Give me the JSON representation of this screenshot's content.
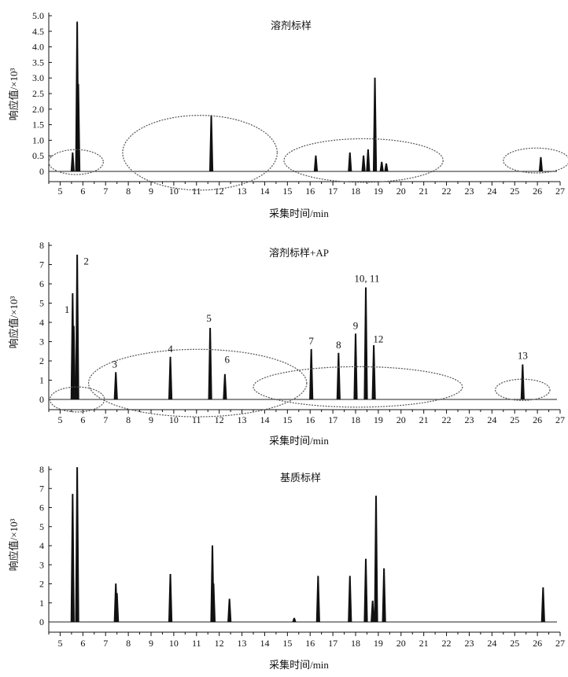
{
  "chart_data": [
    {
      "type": "line",
      "title": "溶剂标样",
      "xlabel": "采集时间/min",
      "ylabel": "响应值/×10³",
      "xlim": [
        4.5,
        27
      ],
      "ylim": [
        0,
        5.0
      ],
      "x_ticks": [
        "5",
        "6",
        "7",
        "8",
        "9",
        "10",
        "11",
        "12",
        "13",
        "14",
        "15",
        "16",
        "17",
        "18",
        "19",
        "20",
        "21",
        "22",
        "23",
        "24",
        "25",
        "26",
        "27"
      ],
      "y_ticks": [
        "0",
        "0.5",
        "1.0",
        "1.5",
        "2.0",
        "2.5",
        "3.0",
        "3.5",
        "4.0",
        "4.5",
        "5.0"
      ],
      "series": [
        {
          "peaks": [
            {
              "x": 5.55,
              "y": 0.6
            },
            {
              "x": 5.75,
              "y": 4.8
            },
            {
              "x": 5.8,
              "y": 2.8
            },
            {
              "x": 11.65,
              "y": 1.8
            },
            {
              "x": 16.25,
              "y": 0.5
            },
            {
              "x": 17.75,
              "y": 0.6
            },
            {
              "x": 18.35,
              "y": 0.5
            },
            {
              "x": 18.55,
              "y": 0.7
            },
            {
              "x": 18.85,
              "y": 3.0
            },
            {
              "x": 19.15,
              "y": 0.3
            },
            {
              "x": 19.35,
              "y": 0.25
            },
            {
              "x": 26.15,
              "y": 0.45
            }
          ]
        }
      ],
      "ellipses": [
        {
          "cx": 5.7,
          "cy": 0.3,
          "rx": 1.2,
          "ry": 0.4
        },
        {
          "cx": 11.15,
          "cy": 0.6,
          "rx": 3.4,
          "ry": 1.2
        },
        {
          "cx": 18.35,
          "cy": 0.35,
          "rx": 3.5,
          "ry": 0.7
        },
        {
          "cx": 25.95,
          "cy": 0.35,
          "rx": 1.45,
          "ry": 0.4
        }
      ]
    },
    {
      "type": "line",
      "title": "溶剂标样+AP",
      "xlabel": "采集时间/min",
      "ylabel": "响应值/×10³",
      "xlim": [
        4.5,
        27
      ],
      "ylim": [
        0,
        8
      ],
      "x_ticks": [
        "5",
        "6",
        "7",
        "8",
        "9",
        "10",
        "11",
        "12",
        "13",
        "14",
        "15",
        "16",
        "17",
        "18",
        "19",
        "20",
        "21",
        "22",
        "23",
        "24",
        "25",
        "26",
        "27"
      ],
      "y_ticks": [
        "0",
        "1",
        "2",
        "3",
        "4",
        "5",
        "6",
        "7",
        "8"
      ],
      "series": [
        {
          "peaks": [
            {
              "x": 5.55,
              "y": 5.5
            },
            {
              "x": 5.6,
              "y": 3.8
            },
            {
              "x": 5.75,
              "y": 7.5
            },
            {
              "x": 7.45,
              "y": 1.4
            },
            {
              "x": 9.85,
              "y": 2.2
            },
            {
              "x": 11.6,
              "y": 3.7
            },
            {
              "x": 12.25,
              "y": 1.3
            },
            {
              "x": 16.05,
              "y": 2.6
            },
            {
              "x": 17.25,
              "y": 2.4
            },
            {
              "x": 18.0,
              "y": 3.4
            },
            {
              "x": 18.45,
              "y": 5.8
            },
            {
              "x": 18.8,
              "y": 2.8
            },
            {
              "x": 25.35,
              "y": 1.8
            }
          ]
        }
      ],
      "labels": [
        {
          "text": "1",
          "x": 5.3,
          "y": 4.5
        },
        {
          "text": "2",
          "x": 6.15,
          "y": 7.0
        },
        {
          "text": "3",
          "x": 7.4,
          "y": 1.65
        },
        {
          "text": "4",
          "x": 9.85,
          "y": 2.45
        },
        {
          "text": "5",
          "x": 11.55,
          "y": 4.05
        },
        {
          "text": "6",
          "x": 12.35,
          "y": 1.9
        },
        {
          "text": "7",
          "x": 16.05,
          "y": 2.85
        },
        {
          "text": "8",
          "x": 17.25,
          "y": 2.65
        },
        {
          "text": "9",
          "x": 18.0,
          "y": 3.65
        },
        {
          "text": "10, 11",
          "x": 18.5,
          "y": 6.1
        },
        {
          "text": "12",
          "x": 19.0,
          "y": 2.95
        },
        {
          "text": "13",
          "x": 25.35,
          "y": 2.1
        }
      ],
      "ellipses": [
        {
          "cx": 5.75,
          "cy": 0.0,
          "rx": 1.2,
          "ry": 0.65
        },
        {
          "cx": 11.05,
          "cy": 0.85,
          "rx": 4.8,
          "ry": 1.75
        },
        {
          "cx": 18.1,
          "cy": 0.65,
          "rx": 4.6,
          "ry": 1.05
        },
        {
          "cx": 25.35,
          "cy": 0.5,
          "rx": 1.2,
          "ry": 0.55
        }
      ]
    },
    {
      "type": "line",
      "title": "基质标样",
      "xlabel": "采集时间/min",
      "ylabel": "响应值/×10³",
      "xlim": [
        4.5,
        27
      ],
      "ylim": [
        0,
        8
      ],
      "x_ticks": [
        "5",
        "6",
        "7",
        "8",
        "9",
        "10",
        "11",
        "12",
        "13",
        "14",
        "15",
        "16",
        "17",
        "18",
        "19",
        "20",
        "21",
        "22",
        "23",
        "24",
        "25",
        "26",
        "27"
      ],
      "y_ticks": [
        "0",
        "1",
        "2",
        "3",
        "4",
        "5",
        "6",
        "7",
        "8"
      ],
      "series": [
        {
          "peaks": [
            {
              "x": 5.55,
              "y": 6.7
            },
            {
              "x": 5.75,
              "y": 8.1
            },
            {
              "x": 7.45,
              "y": 2.0
            },
            {
              "x": 7.5,
              "y": 1.5
            },
            {
              "x": 9.85,
              "y": 2.5
            },
            {
              "x": 11.7,
              "y": 4.0
            },
            {
              "x": 11.75,
              "y": 2.0
            },
            {
              "x": 12.45,
              "y": 1.2
            },
            {
              "x": 15.3,
              "y": 0.2
            },
            {
              "x": 16.35,
              "y": 2.4
            },
            {
              "x": 17.75,
              "y": 2.4
            },
            {
              "x": 18.45,
              "y": 3.3
            },
            {
              "x": 18.75,
              "y": 1.1
            },
            {
              "x": 18.9,
              "y": 6.6
            },
            {
              "x": 19.25,
              "y": 2.8
            },
            {
              "x": 26.25,
              "y": 1.8
            }
          ]
        }
      ]
    }
  ]
}
